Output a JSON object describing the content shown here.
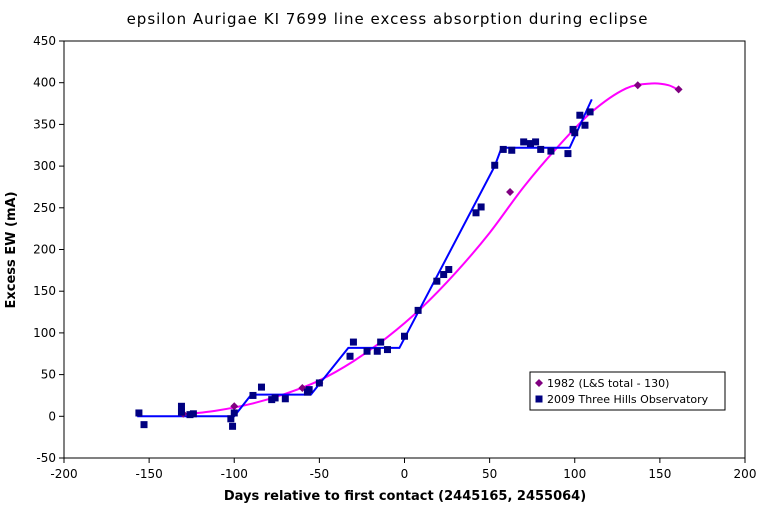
{
  "chart_data": {
    "type": "scatter",
    "title": "epsilon Aurigae   KI 7699 line excess absorption during eclipse",
    "xlabel": "Days relative to first contact (2445165, 2455064)",
    "ylabel": "Excess EW (mA)",
    "xlim": [
      -200,
      200
    ],
    "ylim": [
      -50,
      450
    ],
    "xticks": [
      -200,
      -150,
      -100,
      -50,
      0,
      50,
      100,
      150,
      200
    ],
    "yticks": [
      -50,
      0,
      50,
      100,
      150,
      200,
      250,
      300,
      350,
      400,
      450
    ],
    "grid": false,
    "legend_position": "bottom-right",
    "series": [
      {
        "name": "1982 (L&S total - 130)",
        "color": "#800080",
        "line_color": "#ff00ff",
        "marker": "diamond",
        "points": [
          {
            "x": -130,
            "y": 3
          },
          {
            "x": -100,
            "y": 12
          },
          {
            "x": -60,
            "y": 34
          },
          {
            "x": -50,
            "y": 40
          },
          {
            "x": 62,
            "y": 269
          },
          {
            "x": 137,
            "y": 397
          },
          {
            "x": 161,
            "y": 392
          }
        ],
        "trend": [
          {
            "x": -130,
            "y": 2
          },
          {
            "x": -110,
            "y": 7
          },
          {
            "x": -90,
            "y": 15
          },
          {
            "x": -70,
            "y": 27
          },
          {
            "x": -50,
            "y": 43
          },
          {
            "x": -30,
            "y": 66
          },
          {
            "x": -10,
            "y": 95
          },
          {
            "x": 10,
            "y": 130
          },
          {
            "x": 30,
            "y": 172
          },
          {
            "x": 50,
            "y": 220
          },
          {
            "x": 70,
            "y": 275
          },
          {
            "x": 90,
            "y": 323
          },
          {
            "x": 110,
            "y": 365
          },
          {
            "x": 130,
            "y": 393
          },
          {
            "x": 145,
            "y": 399
          },
          {
            "x": 155,
            "y": 397
          },
          {
            "x": 161,
            "y": 391
          }
        ]
      },
      {
        "name": "2009 Three Hills Observatory",
        "color": "#000080",
        "line_color": "#0000ff",
        "marker": "square",
        "points": [
          {
            "x": -156,
            "y": 4
          },
          {
            "x": -153,
            "y": -10
          },
          {
            "x": -131,
            "y": 5
          },
          {
            "x": -131,
            "y": 12
          },
          {
            "x": -126,
            "y": 2
          },
          {
            "x": -124,
            "y": 3
          },
          {
            "x": -102,
            "y": -3
          },
          {
            "x": -101,
            "y": -12
          },
          {
            "x": -100,
            "y": 4
          },
          {
            "x": -89,
            "y": 25
          },
          {
            "x": -84,
            "y": 35
          },
          {
            "x": -78,
            "y": 20
          },
          {
            "x": -76,
            "y": 22
          },
          {
            "x": -70,
            "y": 21
          },
          {
            "x": -57,
            "y": 29
          },
          {
            "x": -56,
            "y": 32
          },
          {
            "x": -50,
            "y": 40
          },
          {
            "x": -32,
            "y": 72
          },
          {
            "x": -30,
            "y": 89
          },
          {
            "x": -22,
            "y": 78
          },
          {
            "x": -16,
            "y": 78
          },
          {
            "x": -14,
            "y": 89
          },
          {
            "x": -10,
            "y": 80
          },
          {
            "x": 0,
            "y": 96
          },
          {
            "x": 8,
            "y": 127
          },
          {
            "x": 19,
            "y": 162
          },
          {
            "x": 23,
            "y": 170
          },
          {
            "x": 26,
            "y": 176
          },
          {
            "x": 42,
            "y": 244
          },
          {
            "x": 45,
            "y": 251
          },
          {
            "x": 53,
            "y": 301
          },
          {
            "x": 58,
            "y": 320
          },
          {
            "x": 63,
            "y": 319
          },
          {
            "x": 70,
            "y": 329
          },
          {
            "x": 74,
            "y": 327
          },
          {
            "x": 77,
            "y": 329
          },
          {
            "x": 80,
            "y": 320
          },
          {
            "x": 86,
            "y": 318
          },
          {
            "x": 96,
            "y": 315
          },
          {
            "x": 99,
            "y": 344
          },
          {
            "x": 100,
            "y": 340
          },
          {
            "x": 103,
            "y": 361
          },
          {
            "x": 106,
            "y": 349
          },
          {
            "x": 109,
            "y": 365
          }
        ],
        "trend": [
          {
            "x": -157,
            "y": 0
          },
          {
            "x": -100,
            "y": 0
          },
          {
            "x": -90,
            "y": 26
          },
          {
            "x": -55,
            "y": 26
          },
          {
            "x": -33,
            "y": 82
          },
          {
            "x": -3,
            "y": 82
          },
          {
            "x": 53,
            "y": 300
          },
          {
            "x": 57,
            "y": 322
          },
          {
            "x": 97,
            "y": 322
          },
          {
            "x": 110,
            "y": 380
          }
        ]
      }
    ]
  }
}
